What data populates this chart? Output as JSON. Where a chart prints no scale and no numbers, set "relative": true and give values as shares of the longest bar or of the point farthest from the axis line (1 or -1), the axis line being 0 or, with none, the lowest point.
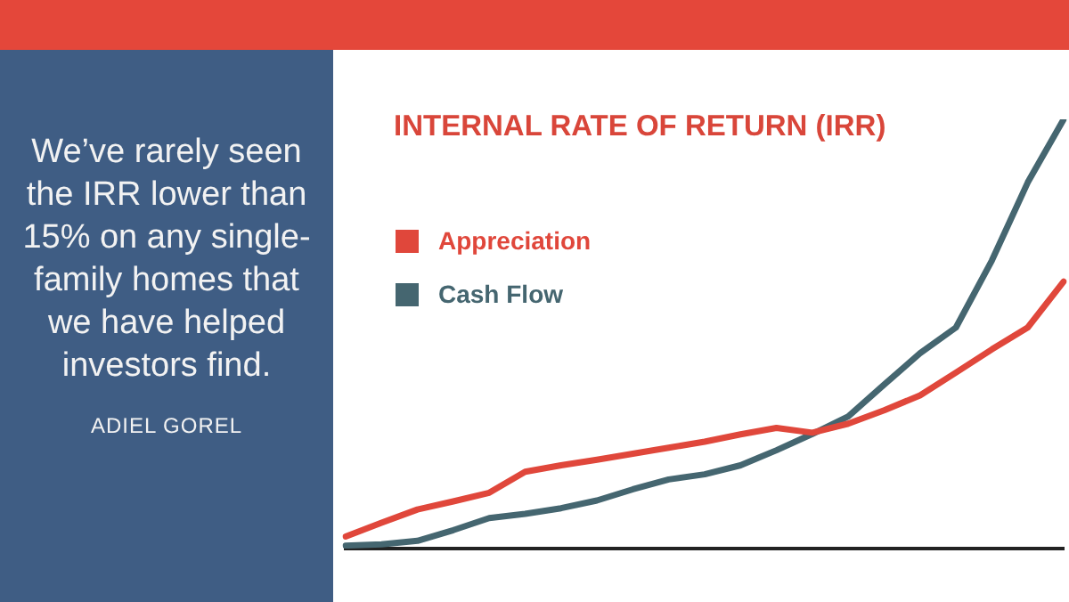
{
  "chart_data": {
    "type": "line",
    "title": "INTERNAL RATE OF RETURN (IRR)",
    "relative": true,
    "legend": "top left",
    "grid": false,
    "categories": [
      null,
      null,
      null,
      null,
      null,
      null,
      null,
      null,
      null,
      null,
      null,
      null,
      null,
      null,
      null,
      null,
      null,
      null,
      null,
      null,
      null
    ],
    "series": [
      {
        "name": "Appreciation",
        "color": "#e0473b",
        "values": [
          0.028,
          0.06,
          0.091,
          0.11,
          0.13,
          0.179,
          0.194,
          0.207,
          0.221,
          0.235,
          0.249,
          0.266,
          0.281,
          0.27,
          0.291,
          0.322,
          0.357,
          0.41,
          0.464,
          0.515,
          0.622
        ]
      },
      {
        "name": "Cash Flow",
        "color": "#456670",
        "values": [
          0.007,
          0.01,
          0.018,
          0.043,
          0.071,
          0.081,
          0.094,
          0.112,
          0.138,
          0.161,
          0.173,
          0.194,
          0.229,
          0.267,
          0.308,
          0.382,
          0.455,
          0.515,
          0.671,
          0.853,
          1
        ]
      }
    ],
    "annotations": [
      "We’ve rarely seen the IRR lower than 15% on any single-family homes that we have helped investors find.",
      "ADIEL GOREL"
    ]
  }
}
